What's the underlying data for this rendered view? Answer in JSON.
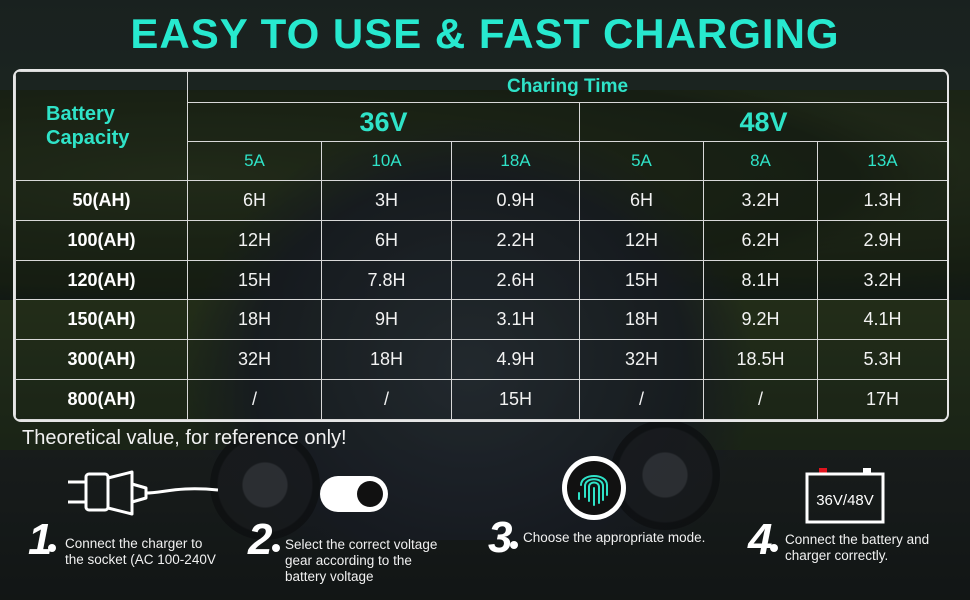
{
  "title": "EASY TO USE & FAST CHARGING",
  "table": {
    "row_header": "Battery Capacity",
    "charging_time": "Charing Time",
    "voltages": [
      "36V",
      "48V"
    ],
    "amps": [
      "5A",
      "10A",
      "18A",
      "5A",
      "8A",
      "13A"
    ],
    "rows": [
      {
        "capacity": "50(AH)",
        "values": [
          "6H",
          "3H",
          "0.9H",
          "6H",
          "3.2H",
          "1.3H"
        ]
      },
      {
        "capacity": "100(AH)",
        "values": [
          "12H",
          "6H",
          "2.2H",
          "12H",
          "6.2H",
          "2.9H"
        ]
      },
      {
        "capacity": "120(AH)",
        "values": [
          "15H",
          "7.8H",
          "2.6H",
          "15H",
          "8.1H",
          "3.2H"
        ]
      },
      {
        "capacity": "150(AH)",
        "values": [
          "18H",
          "9H",
          "3.1H",
          "18H",
          "9.2H",
          "4.1H"
        ]
      },
      {
        "capacity": "300(AH)",
        "values": [
          "32H",
          "18H",
          "4.9H",
          "32H",
          "18.5H",
          "5.3H"
        ]
      },
      {
        "capacity": "800(AH)",
        "values": [
          "/",
          "/",
          "15H",
          "/",
          "/",
          "17H"
        ]
      }
    ]
  },
  "note": "Theoretical value, for reference only!",
  "steps": [
    {
      "num": "1",
      "text": [
        "Connect the charger to",
        "the socket (AC 100-240V"
      ],
      "icon": "plug-icon"
    },
    {
      "num": "2",
      "text": [
        "Select the correct voltage",
        "gear according to the",
        "battery voltage"
      ],
      "icon": "toggle-icon"
    },
    {
      "num": "3",
      "text": [
        "Choose the appropriate mode."
      ],
      "icon": "fingerprint-icon"
    },
    {
      "num": "4",
      "text": [
        "Connect the battery and",
        "charger correctly."
      ],
      "icon": "battery-icon"
    }
  ],
  "battery_label": "36V/48V",
  "colors": {
    "accent": "#27e9cf",
    "text": "#ffffff",
    "terminal": "#e0141e"
  }
}
